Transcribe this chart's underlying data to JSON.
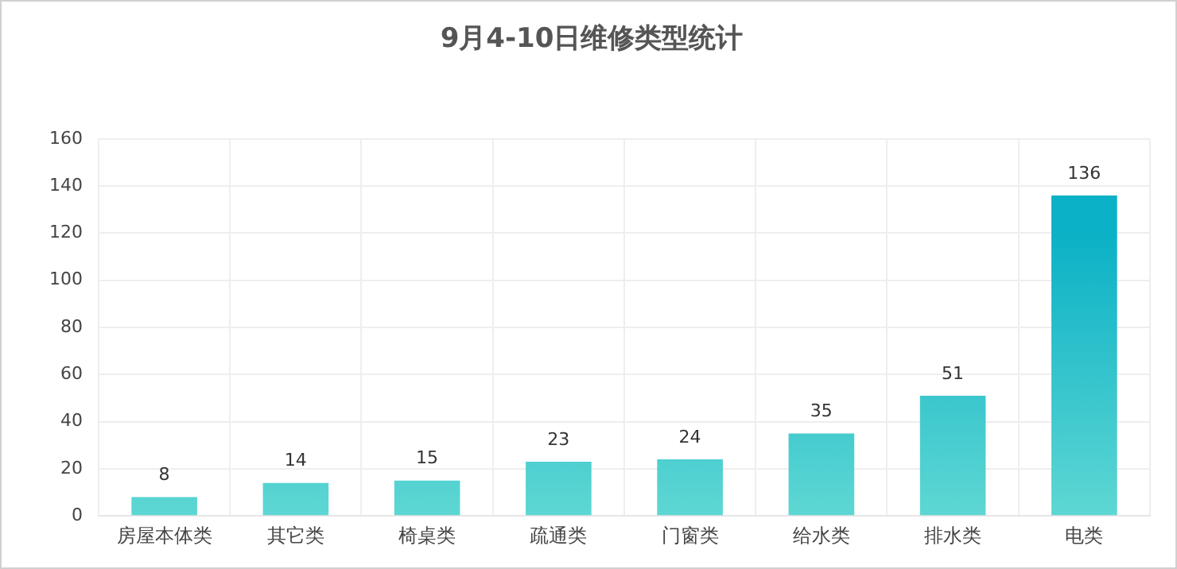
{
  "chart_data": {
    "type": "bar",
    "title": "9月4-10日维修类型统计",
    "categories": [
      "房屋本体类",
      "其它类",
      "椅桌类",
      "疏通类",
      "门窗类",
      "给水类",
      "排水类",
      "电类"
    ],
    "values": [
      8,
      14,
      15,
      23,
      24,
      35,
      51,
      136
    ],
    "color": "#0bb1c6",
    "ylim": [
      0,
      160
    ],
    "yticks": [
      0,
      20,
      40,
      60,
      80,
      100,
      120,
      140,
      160
    ],
    "grid": true,
    "data_labels": true
  }
}
